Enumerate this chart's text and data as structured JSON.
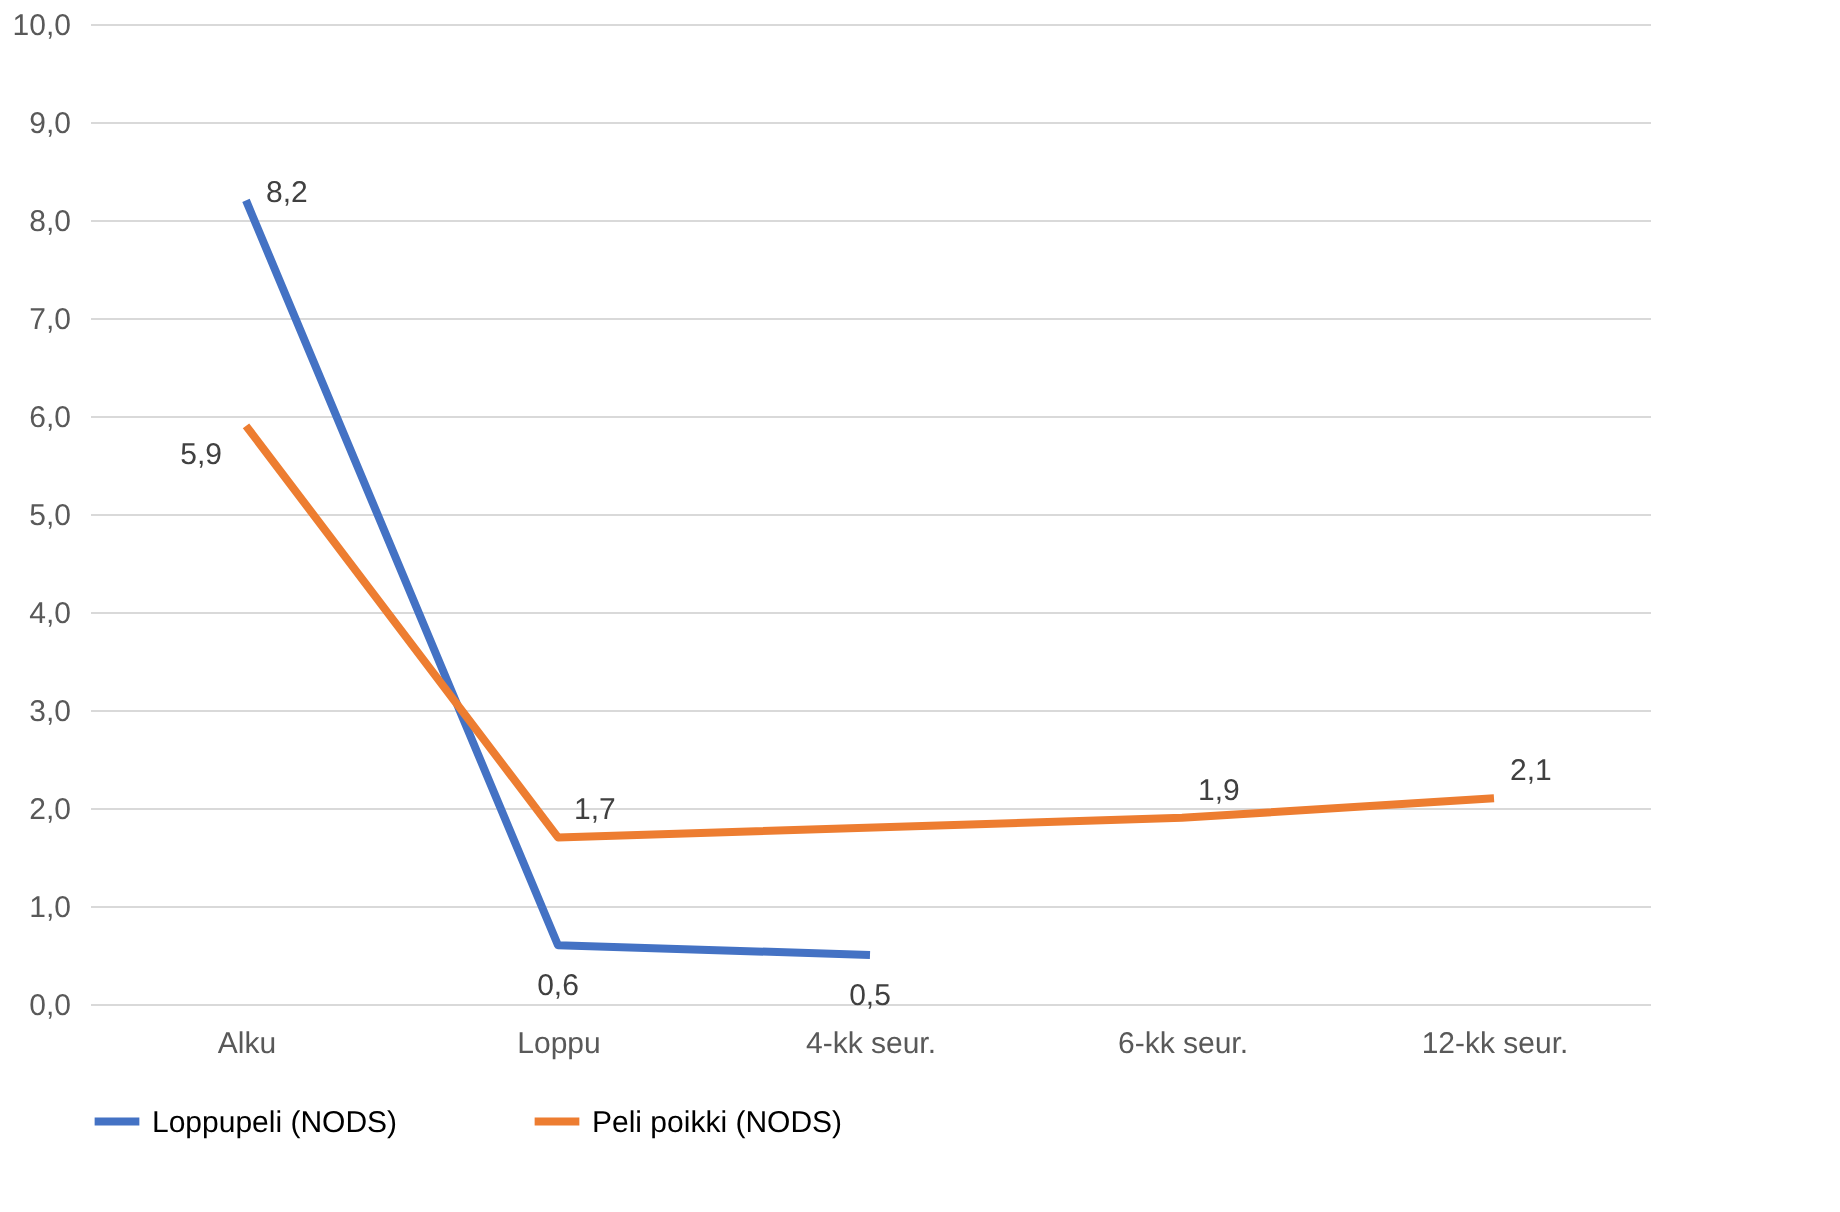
{
  "chart_data": {
    "type": "line",
    "categories": [
      "Alku",
      "Loppu",
      "4-kk seur.",
      "6-kk seur.",
      "12-kk seur."
    ],
    "series": [
      {
        "name": "Loppupeli (NODS)",
        "color": "#4472c4",
        "values": [
          8.2,
          0.6,
          0.5,
          null,
          null
        ],
        "value_labels": [
          "8,2",
          "0,6",
          "0,5",
          null,
          null
        ]
      },
      {
        "name": "Peli poikki (NODS)",
        "color": "#ed7d31",
        "values": [
          5.9,
          1.7,
          null,
          1.9,
          2.1
        ],
        "value_labels": [
          "5,9",
          "1,7",
          null,
          "1,9",
          "2,1"
        ]
      }
    ],
    "ylim": [
      0,
      10
    ],
    "yticks": [
      {
        "value": 0,
        "label": "0,0"
      },
      {
        "value": 1,
        "label": "1,0"
      },
      {
        "value": 2,
        "label": "2,0"
      },
      {
        "value": 3,
        "label": "3,0"
      },
      {
        "value": 4,
        "label": "4,0"
      },
      {
        "value": 5,
        "label": "5,0"
      },
      {
        "value": 6,
        "label": "6,0"
      },
      {
        "value": 7,
        "label": "7,0"
      },
      {
        "value": 8,
        "label": "8,0"
      },
      {
        "value": 9,
        "label": "9,0"
      },
      {
        "value": 10,
        "label": "10,0"
      }
    ],
    "grid": "y",
    "legend": "bottom",
    "marker": "none",
    "line_style": "solid"
  }
}
